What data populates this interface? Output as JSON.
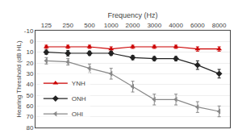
{
  "chart_data": {
    "type": "line",
    "xlabel": "Frequency (Hz)",
    "ylabel": "Hearing Threshold (dB HL)",
    "categories": [
      "125",
      "250",
      "500",
      "1000",
      "2000",
      "3000",
      "4000",
      "6000",
      "8000"
    ],
    "series": [
      {
        "name": "YNH",
        "color": "#cc0000",
        "marker": "triangle-up",
        "values": [
          5,
          5,
          5,
          7,
          5,
          5,
          5,
          7,
          7
        ],
        "yerr": [
          1.5,
          1.5,
          1.5,
          2,
          1.5,
          1.5,
          1.5,
          2,
          2
        ]
      },
      {
        "name": "ONH",
        "color": "#222222",
        "marker": "diamond",
        "values": [
          10,
          11,
          11,
          11,
          15,
          16,
          16,
          22,
          30
        ],
        "yerr": [
          2,
          2.5,
          2,
          2,
          2,
          2,
          2,
          4,
          4
        ]
      },
      {
        "name": "OHI",
        "color": "#888888",
        "marker": "triangle-left",
        "values": [
          18,
          19,
          25,
          30,
          42,
          54,
          54,
          61,
          65
        ],
        "yerr": [
          3,
          3,
          4,
          5,
          5,
          5,
          5,
          5,
          5
        ]
      }
    ],
    "ylim": [
      80,
      -10
    ],
    "yticks": [
      -10,
      0,
      10,
      20,
      30,
      40,
      50,
      60,
      70,
      80
    ],
    "grid": true,
    "legend": "lower left"
  }
}
